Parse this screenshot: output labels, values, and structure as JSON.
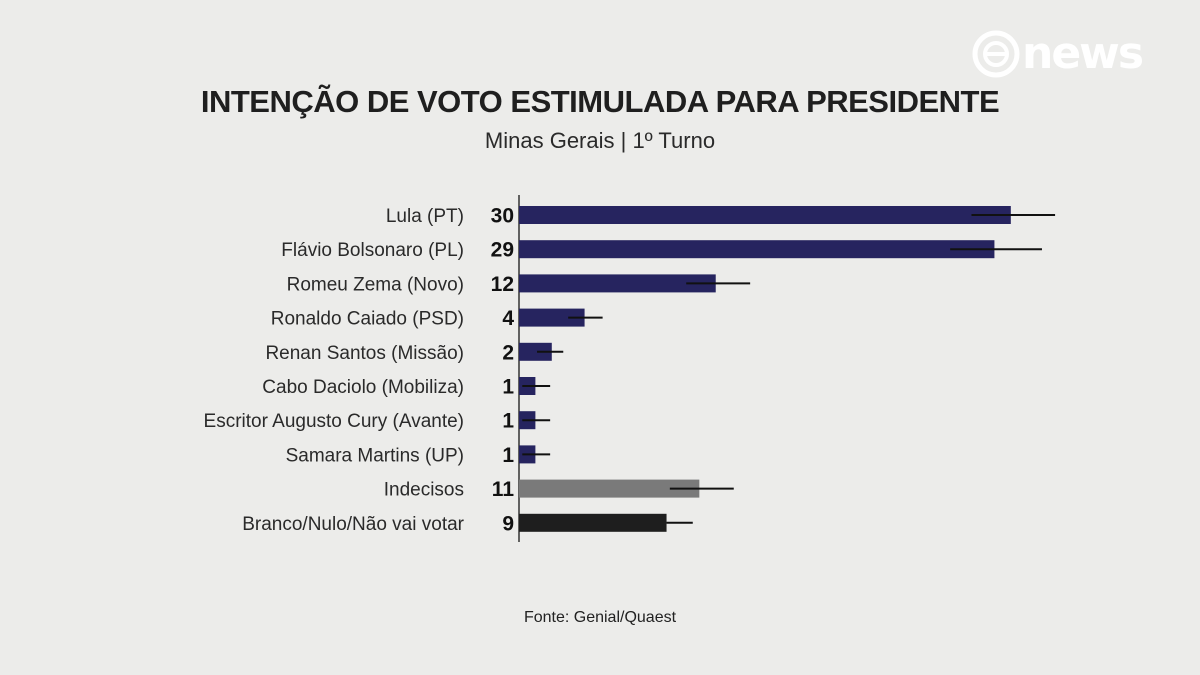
{
  "brand": {
    "logo_text": "news"
  },
  "title": "INTENÇÃO DE VOTO ESTIMULADA PARA PRESIDENTE",
  "subtitle": "Minas Gerais | 1º Turno",
  "source": "Fonte: Genial/Quaest",
  "colors": {
    "candidate_bar": "#26245f",
    "undecided_bar": "#7a7a7a",
    "blank_bar": "#1e1e1e",
    "axis": "#333333",
    "error_bar": "#111111",
    "background": "#ececea",
    "logo": "#ffffff"
  },
  "chart_data": {
    "type": "bar",
    "orientation": "horizontal",
    "title": "INTENÇÃO DE VOTO ESTIMULADA PARA PRESIDENTE",
    "subtitle": "Minas Gerais | 1º Turno",
    "categories": [
      "Lula (PT)",
      "Flávio Bolsonaro (PL)",
      "Romeu Zema (Novo)",
      "Ronaldo Caiado (PSD)",
      "Renan Santos (Missão)",
      "Cabo Daciolo (Mobiliza)",
      "Escritor Augusto Cury (Avante)",
      "Samara Martins (UP)",
      "Indecisos",
      "Branco/Nulo/Não vai votar"
    ],
    "values": [
      30,
      29,
      12,
      4,
      2,
      1,
      1,
      1,
      11,
      9
    ],
    "labels": [
      "30",
      "29",
      "12",
      "4",
      "2",
      "1",
      "1",
      "1",
      "11",
      "9"
    ],
    "error_bars": [
      [
        27.6,
        32.7
      ],
      [
        26.3,
        31.9
      ],
      [
        10.2,
        14.1
      ],
      [
        3.0,
        5.1
      ],
      [
        1.1,
        2.7
      ],
      [
        0.2,
        1.9
      ],
      [
        0.2,
        1.9
      ],
      [
        0.2,
        1.9
      ],
      [
        9.2,
        13.1
      ],
      [
        9.0,
        10.6
      ]
    ],
    "bar_kind": [
      "candidate",
      "candidate",
      "candidate",
      "candidate",
      "candidate",
      "candidate",
      "candidate",
      "candidate",
      "undecided",
      "blank"
    ],
    "xlim": [
      0,
      33
    ],
    "grid": false,
    "legend": "none"
  }
}
